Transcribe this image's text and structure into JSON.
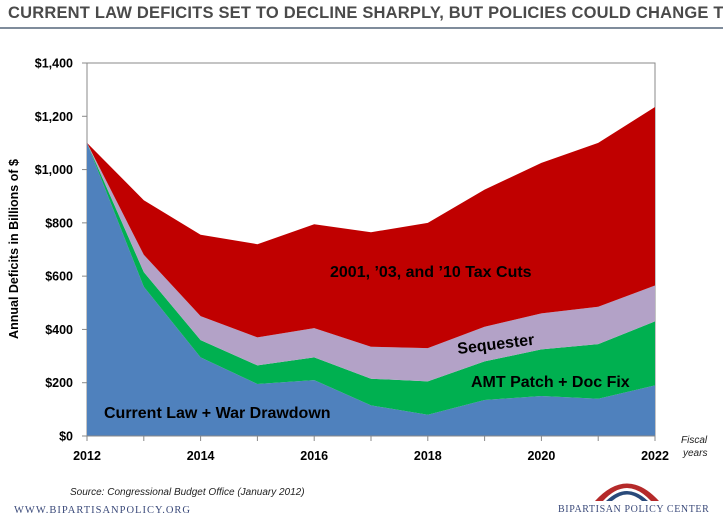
{
  "title": "CURRENT LAW DEFICITS SET TO DECLINE SHARPLY, BUT POLICIES COULD CHANGE THAT",
  "source": "Source: Congressional Budget Office (January 2012)",
  "footer": {
    "url": "WWW.BIPARTISANPOLICY.ORG",
    "org": "BIPARTISAN POLICY CENTER"
  },
  "colors": {
    "current_law": "#4f81bd",
    "amt": "#00b050",
    "sequester": "#b3a2c7",
    "tax_cuts": "#c00000"
  },
  "chart_data": {
    "type": "area",
    "stacked": true,
    "x": [
      2012,
      2013,
      2014,
      2015,
      2016,
      2017,
      2018,
      2019,
      2020,
      2021,
      2022
    ],
    "series": [
      {
        "name": "Current Law + War Drawdown",
        "color": "#4f81bd",
        "values": [
          1100,
          560,
          295,
          195,
          210,
          115,
          80,
          135,
          150,
          140,
          190
        ]
      },
      {
        "name": "AMT Patch + Doc Fix",
        "color": "#00b050",
        "values": [
          0,
          55,
          65,
          70,
          85,
          100,
          125,
          145,
          175,
          205,
          240
        ]
      },
      {
        "name": "Sequester",
        "color": "#b3a2c7",
        "values": [
          0,
          65,
          90,
          105,
          110,
          120,
          125,
          130,
          135,
          140,
          135
        ]
      },
      {
        "name": "2001, ’03, and ’10 Tax Cuts",
        "color": "#c00000",
        "values": [
          0,
          205,
          305,
          350,
          390,
          430,
          470,
          515,
          565,
          615,
          670
        ]
      }
    ],
    "xticks": [
      "2012",
      "2014",
      "2016",
      "2018",
      "2020",
      "2022"
    ],
    "yticks": [
      "$0",
      "$200",
      "$400",
      "$600",
      "$800",
      "$1,000",
      "$1,200",
      "$1,400"
    ],
    "ylabel": "Annual Deficits in Billions of $",
    "xunit": [
      "Fiscal",
      "years"
    ],
    "xlim": [
      2012,
      2022
    ],
    "ylim": [
      0,
      1400
    ],
    "grid": false,
    "legend": "inline labels"
  }
}
